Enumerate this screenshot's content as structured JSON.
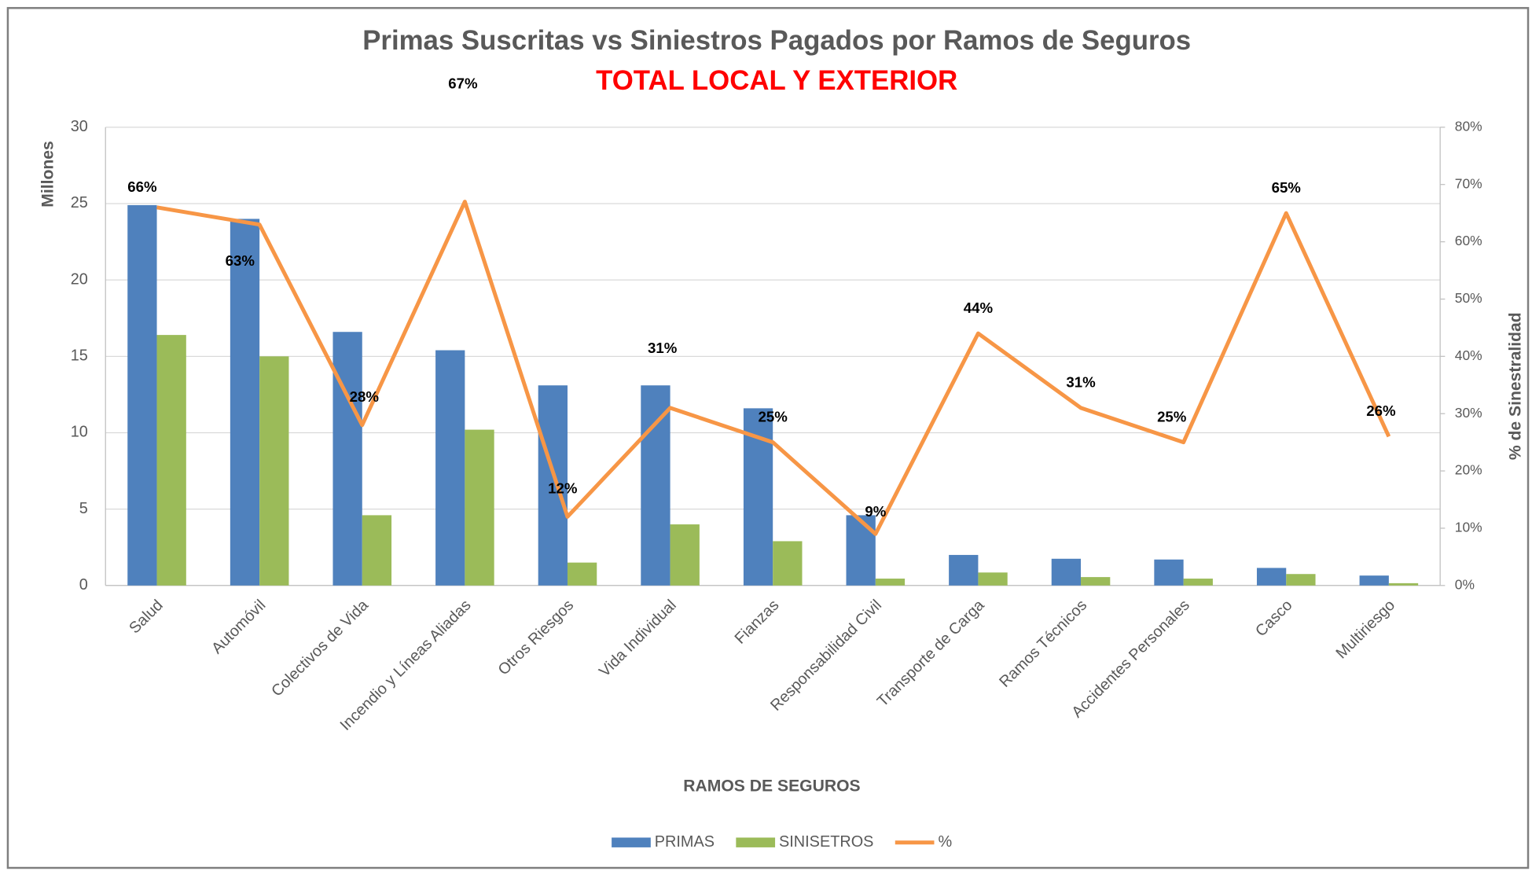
{
  "chart_data": {
    "type": "bar-line",
    "title": "Primas Suscritas vs Siniestros Pagados por Ramos de Seguros",
    "subtitle": "TOTAL LOCAL Y EXTERIOR",
    "x_label": "RAMOS DE SEGUROS",
    "y_label": "Millones",
    "y2_label": "% de Sinestralidad",
    "categories": [
      "Salud",
      "Automóvil",
      "Colectivos de Vida",
      "Incendio y Líneas Aliadas",
      "Otros Riesgos",
      "Vida Individual",
      "Fianzas",
      "Responsabilidad Civil",
      "Transporte de Carga",
      "Ramos Técnicos",
      "Accidentes Personales",
      "Casco",
      "Multiriesgo"
    ],
    "series": [
      {
        "name": "PRIMAS",
        "color": "#4f81bd",
        "type": "bar",
        "values": [
          24.9,
          24.0,
          16.6,
          15.4,
          13.1,
          13.1,
          11.6,
          4.6,
          2.0,
          1.75,
          1.7,
          1.15,
          0.65
        ]
      },
      {
        "name": "SINISETROS",
        "color": "#9bbb59",
        "type": "bar",
        "values": [
          16.4,
          15.0,
          4.6,
          10.2,
          1.5,
          4.0,
          2.9,
          0.45,
          0.85,
          0.55,
          0.45,
          0.75,
          0.15
        ]
      },
      {
        "name": "%",
        "color": "#f79646",
        "type": "line",
        "axis": "y2",
        "values": [
          66,
          63,
          28,
          67,
          12,
          31,
          25,
          9,
          44,
          31,
          25,
          65,
          26
        ],
        "value_labels": [
          "66%",
          "63%",
          "28%",
          "67%",
          "12%",
          "31%",
          "25%",
          "9%",
          "44%",
          "31%",
          "25%",
          "65%",
          "26%"
        ]
      }
    ],
    "ylim": [
      0,
      30
    ],
    "yticks": [
      0,
      5,
      10,
      15,
      20,
      25,
      30
    ],
    "y2lim": [
      0,
      80
    ],
    "y2ticks": [
      {
        "value": 0,
        "label": "0%"
      },
      {
        "value": 10,
        "label": "10%"
      },
      {
        "value": 20,
        "label": "20%"
      },
      {
        "value": 30,
        "label": "30%"
      },
      {
        "value": 40,
        "label": "40%"
      },
      {
        "value": 50,
        "label": "50%"
      },
      {
        "value": 60,
        "label": "60%"
      },
      {
        "value": 70,
        "label": "70%"
      },
      {
        "value": 80,
        "label": "80%"
      }
    ],
    "grid": true,
    "legend": "bottom"
  }
}
